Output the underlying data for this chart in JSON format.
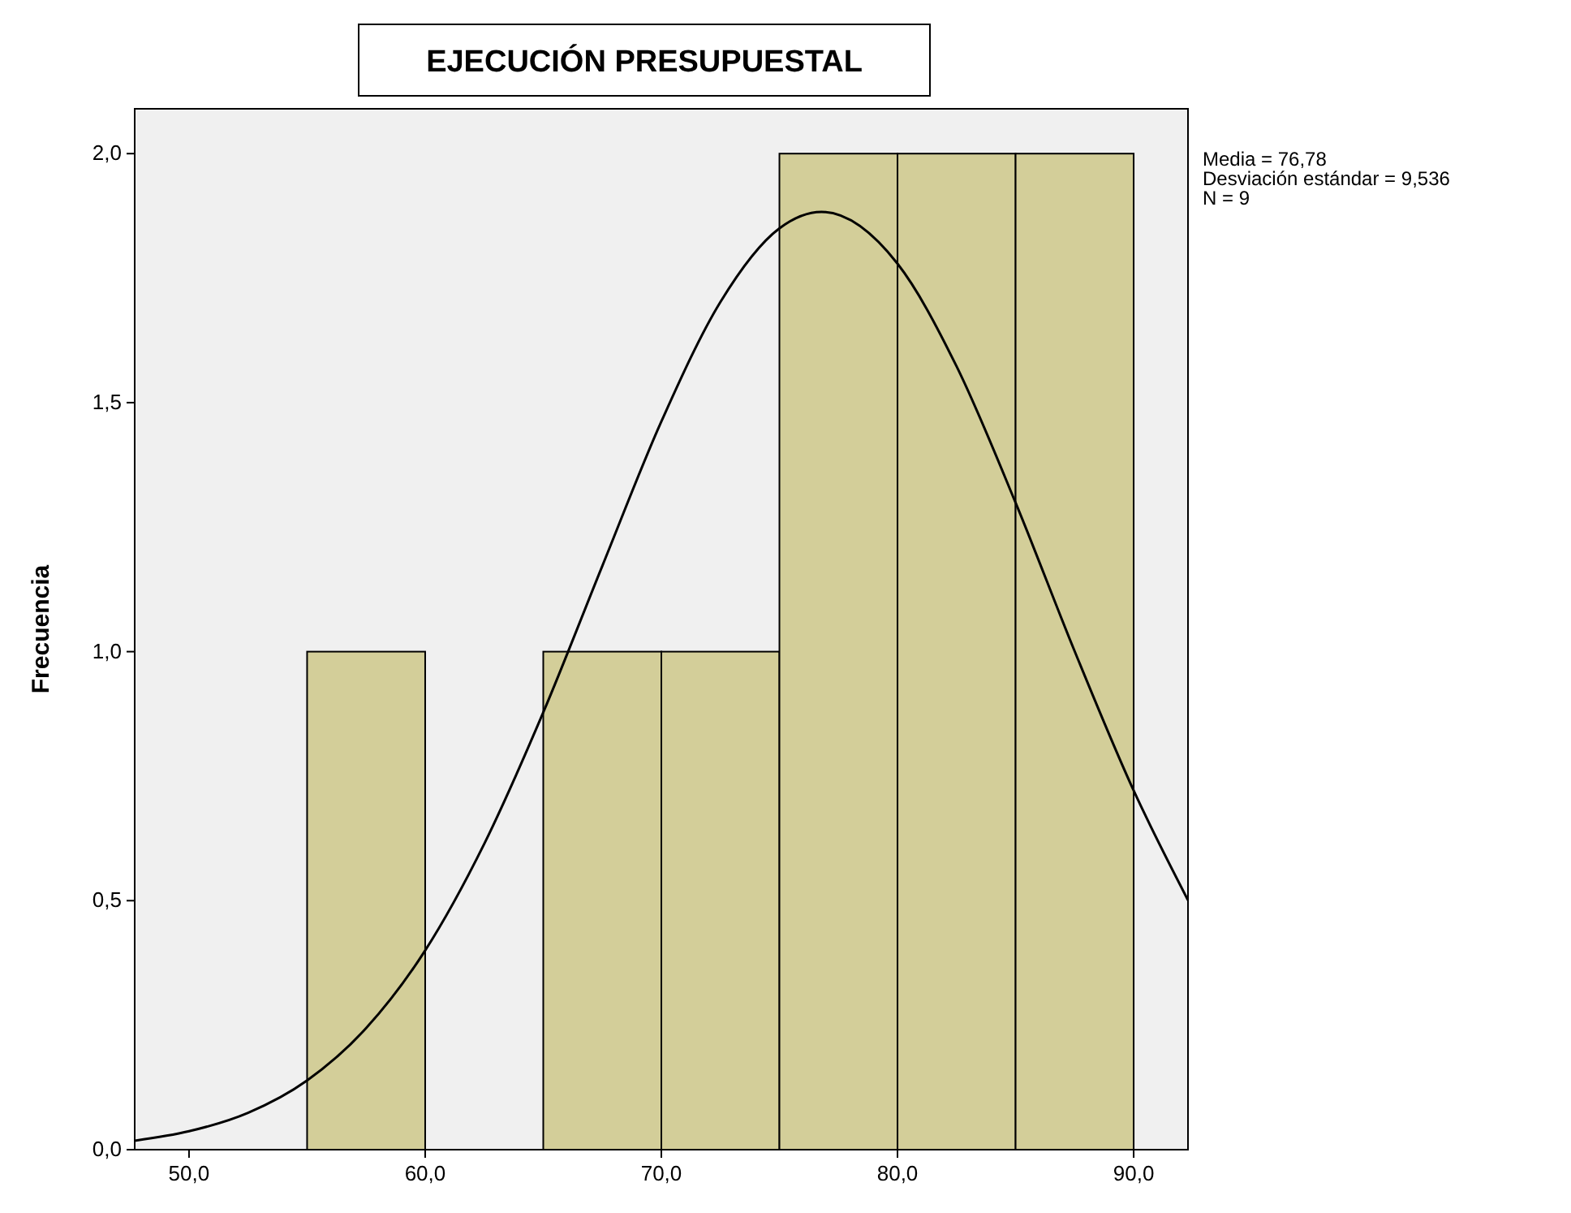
{
  "chart_data": {
    "type": "histogram",
    "title": "EJECUCIÓN PRESUPUESTAL",
    "ylabel": "Frecuencia",
    "bins": [
      55,
      60,
      65,
      70,
      75,
      80,
      85,
      90
    ],
    "values": [
      1,
      0,
      1,
      1,
      2,
      2,
      2
    ],
    "color": "#d3ce99",
    "series": [
      {
        "type": "line",
        "color": "#000000",
        "x": [
          47.7,
          50,
          52.5,
          55,
          57.5,
          60,
          62.5,
          65,
          67.5,
          70,
          72.5,
          75,
          76.78,
          80,
          82.5,
          85,
          87.5,
          90,
          92.3
        ],
        "values": [
          0.018,
          0.037,
          0.074,
          0.139,
          0.244,
          0.4,
          0.614,
          0.878,
          1.172,
          1.462,
          1.702,
          1.85,
          1.883,
          1.779,
          1.573,
          1.299,
          1.001,
          0.721,
          0.501
        ]
      }
    ],
    "xlim": [
      47.7,
      92.3
    ],
    "xticks": [
      {
        "value": 50,
        "label": "50,0"
      },
      {
        "value": 60,
        "label": "60,0"
      },
      {
        "value": 70,
        "label": "70,0"
      },
      {
        "value": 80,
        "label": "80,0"
      },
      {
        "value": 90,
        "label": "90,0"
      }
    ],
    "ylim": [
      0,
      2.09
    ],
    "yticks": [
      {
        "value": 0,
        "label": "0,0"
      },
      {
        "value": 0.5,
        "label": "0,5"
      },
      {
        "value": 1,
        "label": "1,0"
      },
      {
        "value": 1.5,
        "label": "1,5"
      },
      {
        "value": 2,
        "label": "2,0"
      }
    ],
    "annotations": [
      "Media = 76,78",
      "Desviación estándar = 9,536",
      "N = 9"
    ]
  }
}
